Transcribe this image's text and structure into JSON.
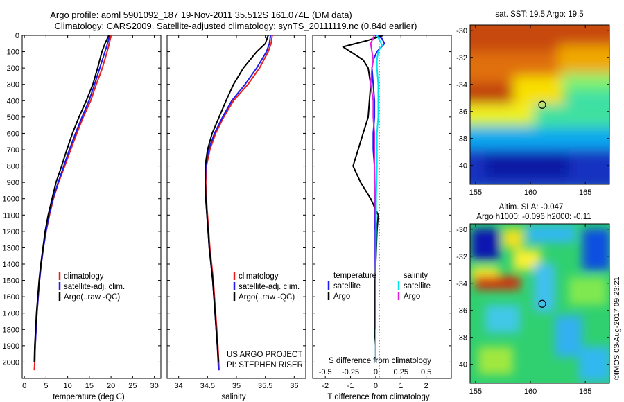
{
  "header": {
    "title_line1": "Argo profile: aoml 5901092_187 19-Nov-2011 35.512S 161.074E (DM data)",
    "title_line2": "Climatology: CARS2009. Satellite-adjusted climatology: synTS_20111119.nc (0.84d earlier)"
  },
  "colors": {
    "climatology": "#e8201c",
    "satellite": "#1c1cf0",
    "argo": "#000000",
    "sat_salinity": "#00e5ee",
    "argo_salinity": "#e020e0"
  },
  "chart_data": [
    {
      "id": "temperature",
      "type": "line",
      "xlabel": "temperature (deg C)",
      "ylabel": "",
      "xlim": [
        -0.5,
        31.5
      ],
      "ylim": [
        2100,
        0
      ],
      "xticks": [
        0,
        5,
        10,
        15,
        20,
        25,
        30
      ],
      "yticks": [
        0,
        100,
        200,
        300,
        400,
        500,
        600,
        700,
        800,
        900,
        1000,
        1100,
        1200,
        1300,
        1400,
        1500,
        1600,
        1700,
        1800,
        1900,
        2000
      ],
      "legend": [
        "climatology",
        "satellite-adj. clim.",
        "Argo(..raw -QC)"
      ],
      "legend_position": "lower-right",
      "series": [
        {
          "name": "climatology",
          "color": "climatology",
          "x": [
            20.0,
            19.6,
            19.1,
            18.0,
            16.6,
            15.3,
            13.6,
            12.1,
            10.7,
            9.3,
            7.9,
            6.7,
            5.8,
            5.0,
            4.4,
            3.9,
            3.5,
            3.2,
            2.9,
            2.7,
            2.5,
            2.4,
            2.3
          ],
          "y": [
            0,
            50,
            100,
            200,
            300,
            400,
            500,
            600,
            700,
            800,
            900,
            1000,
            1100,
            1200,
            1300,
            1400,
            1500,
            1600,
            1700,
            1800,
            1900,
            2000,
            2050
          ]
        },
        {
          "name": "satellite-adj. clim.",
          "color": "satellite",
          "x": [
            19.7,
            19.2,
            18.6,
            17.4,
            16.2,
            14.9,
            13.3,
            11.8,
            10.4,
            9.1,
            7.8,
            6.6,
            5.7,
            5.0,
            4.4,
            3.9,
            3.5,
            3.2,
            2.9,
            2.7,
            2.5,
            2.4
          ],
          "y": [
            0,
            50,
            100,
            200,
            300,
            400,
            500,
            600,
            700,
            800,
            900,
            1000,
            1100,
            1200,
            1300,
            1400,
            1500,
            1600,
            1700,
            1800,
            1900,
            2000
          ]
        },
        {
          "name": "Argo(..raw -QC)",
          "color": "argo",
          "x": [
            19.5,
            18.6,
            17.9,
            16.9,
            15.8,
            14.3,
            12.6,
            11.1,
            9.8,
            8.6,
            7.3,
            6.4,
            5.5,
            4.8,
            4.3,
            3.8,
            3.4,
            3.1,
            2.8,
            2.6,
            2.4,
            2.3
          ],
          "y": [
            0,
            50,
            100,
            200,
            300,
            400,
            500,
            600,
            700,
            800,
            900,
            1000,
            1100,
            1200,
            1300,
            1400,
            1500,
            1600,
            1700,
            1800,
            1900,
            2000
          ]
        }
      ]
    },
    {
      "id": "salinity",
      "type": "line",
      "xlabel": "salinity",
      "xlim": [
        33.8,
        36.2
      ],
      "ylim": [
        2100,
        0
      ],
      "xticks": [
        34,
        34.5,
        35,
        35.5,
        36
      ],
      "legend": [
        "climatology",
        "satellite-adj. clim.",
        "Argo(..raw -QC)"
      ],
      "legend_position": "lower-right",
      "annotation": [
        "US ARGO PROJECT",
        "PI: STEPHEN RISER"
      ],
      "series": [
        {
          "name": "climatology",
          "color": "climatology",
          "x": [
            35.62,
            35.6,
            35.55,
            35.4,
            35.2,
            34.95,
            34.78,
            34.64,
            34.54,
            34.48,
            34.47,
            34.48,
            34.5,
            34.52,
            34.54,
            34.57,
            34.6,
            34.62,
            34.64,
            34.66,
            34.68,
            34.7
          ],
          "y": [
            0,
            50,
            100,
            200,
            300,
            400,
            500,
            600,
            700,
            800,
            900,
            1000,
            1100,
            1200,
            1300,
            1400,
            1500,
            1600,
            1700,
            1800,
            1900,
            2050
          ]
        },
        {
          "name": "satellite-adj. clim.",
          "color": "satellite",
          "x": [
            35.59,
            35.57,
            35.52,
            35.35,
            35.15,
            34.92,
            34.76,
            34.62,
            34.52,
            34.47,
            34.46,
            34.47,
            34.49,
            34.51,
            34.53,
            34.56,
            34.59,
            34.61,
            34.63,
            34.65,
            34.67,
            34.69
          ],
          "y": [
            0,
            50,
            100,
            200,
            300,
            400,
            500,
            600,
            700,
            800,
            900,
            1000,
            1100,
            1200,
            1300,
            1400,
            1500,
            1600,
            1700,
            1800,
            1900,
            2050
          ]
        },
        {
          "name": "Argo(..raw -QC)",
          "color": "argo",
          "x": [
            35.55,
            35.5,
            35.35,
            35.12,
            34.95,
            34.82,
            34.7,
            34.58,
            34.5,
            34.46,
            34.46,
            34.47,
            34.49,
            34.51,
            34.53,
            34.56,
            34.59,
            34.61,
            34.63,
            34.65,
            34.67,
            34.69
          ],
          "y": [
            0,
            50,
            100,
            200,
            300,
            400,
            500,
            600,
            700,
            800,
            900,
            1000,
            1100,
            1200,
            1300,
            1400,
            1500,
            1600,
            1700,
            1800,
            1900,
            2000
          ]
        }
      ]
    },
    {
      "id": "difference",
      "type": "line",
      "xlabel": "T difference from climatology",
      "xlabel_top": "S difference from climatology",
      "xlim": [
        -2.5,
        3.0
      ],
      "ylim": [
        2100,
        0
      ],
      "xticks": [
        -2,
        -1,
        0,
        1,
        2
      ],
      "xticks_s": [
        "-0.5",
        "-0.25",
        "0",
        "0.25",
        "0.5"
      ],
      "legend_temperature": {
        "heading": "temperature",
        "items": [
          "satellite",
          "Argo"
        ]
      },
      "legend_salinity": {
        "heading": "salinity",
        "items": [
          "satellite",
          "Argo"
        ]
      },
      "legend_position": "lower-center",
      "series": [
        {
          "name": "T satellite",
          "color": "satellite",
          "x": [
            0.05,
            0.25,
            0.35,
            0.05,
            -0.1,
            -0.15,
            -0.1,
            -0.05,
            -0.05,
            -0.1,
            -0.1,
            -0.05,
            -0.05,
            -0.05,
            -0.05,
            -0.02,
            -0.02,
            0,
            0,
            0,
            0,
            0
          ],
          "y": [
            0,
            20,
            50,
            100,
            150,
            200,
            300,
            400,
            500,
            600,
            700,
            800,
            900,
            1000,
            1100,
            1200,
            1400,
            1600,
            1700,
            1800,
            1900,
            2000
          ]
        },
        {
          "name": "T Argo",
          "color": "argo",
          "x": [
            0.3,
            -0.3,
            -1.3,
            -1.0,
            -0.5,
            -0.3,
            -0.2,
            -0.25,
            -0.3,
            -0.5,
            -0.7,
            -0.9,
            -0.6,
            -0.2,
            0.1,
            0.05,
            0,
            -0.05,
            -0.05,
            0,
            0
          ],
          "y": [
            0,
            30,
            70,
            100,
            150,
            200,
            300,
            400,
            500,
            600,
            700,
            800,
            900,
            1000,
            1100,
            1200,
            1400,
            1600,
            1800,
            1900,
            2000
          ]
        },
        {
          "name": "S satellite",
          "color": "sat_salinity",
          "x": [
            0.05,
            0.15,
            0.25,
            0.1,
            0.05,
            0.05,
            0.1,
            0.1,
            0.1,
            0.05,
            0.05,
            0.02,
            0.02,
            0,
            0,
            0,
            0
          ],
          "y": [
            0,
            30,
            60,
            100,
            150,
            200,
            300,
            400,
            500,
            600,
            800,
            1000,
            1200,
            1400,
            1600,
            1800,
            2000
          ]
        },
        {
          "name": "S Argo",
          "color": "argo_salinity",
          "x": [
            -0.05,
            -0.2,
            -0.15,
            -0.1,
            -0.15,
            -0.2,
            -0.1,
            -0.1,
            -0.05,
            -0.05,
            -0.05,
            -0.02,
            0,
            0,
            0,
            0
          ],
          "y": [
            0,
            50,
            100,
            150,
            200,
            300,
            400,
            500,
            600,
            700,
            800,
            1000,
            1200,
            1400,
            1600,
            1800
          ]
        }
      ]
    }
  ],
  "maps": [
    {
      "id": "sst-map",
      "title": "sat. SST: 19.5 Argo: 19.5",
      "xticks": [
        "155",
        "160",
        "165"
      ],
      "yticks": [
        "-30",
        "-32",
        "-34",
        "-36",
        "-38",
        "-40"
      ],
      "colormap": "jet",
      "marker": {
        "lon": 161.074,
        "lat": -35.512
      }
    },
    {
      "id": "sla-map",
      "title_line1": "Altim. SLA: -0.047",
      "title_line2": "Argo h1000: -0.096 h2000: -0.11",
      "xticks": [
        "155",
        "160",
        "165"
      ],
      "yticks": [
        "-30",
        "-32",
        "-34",
        "-36",
        "-38",
        "-40"
      ],
      "colormap": "jet",
      "marker": {
        "lon": 161.074,
        "lat": -35.512
      }
    }
  ],
  "credit": "©IMOS 03-Aug-2017 09:23:21"
}
